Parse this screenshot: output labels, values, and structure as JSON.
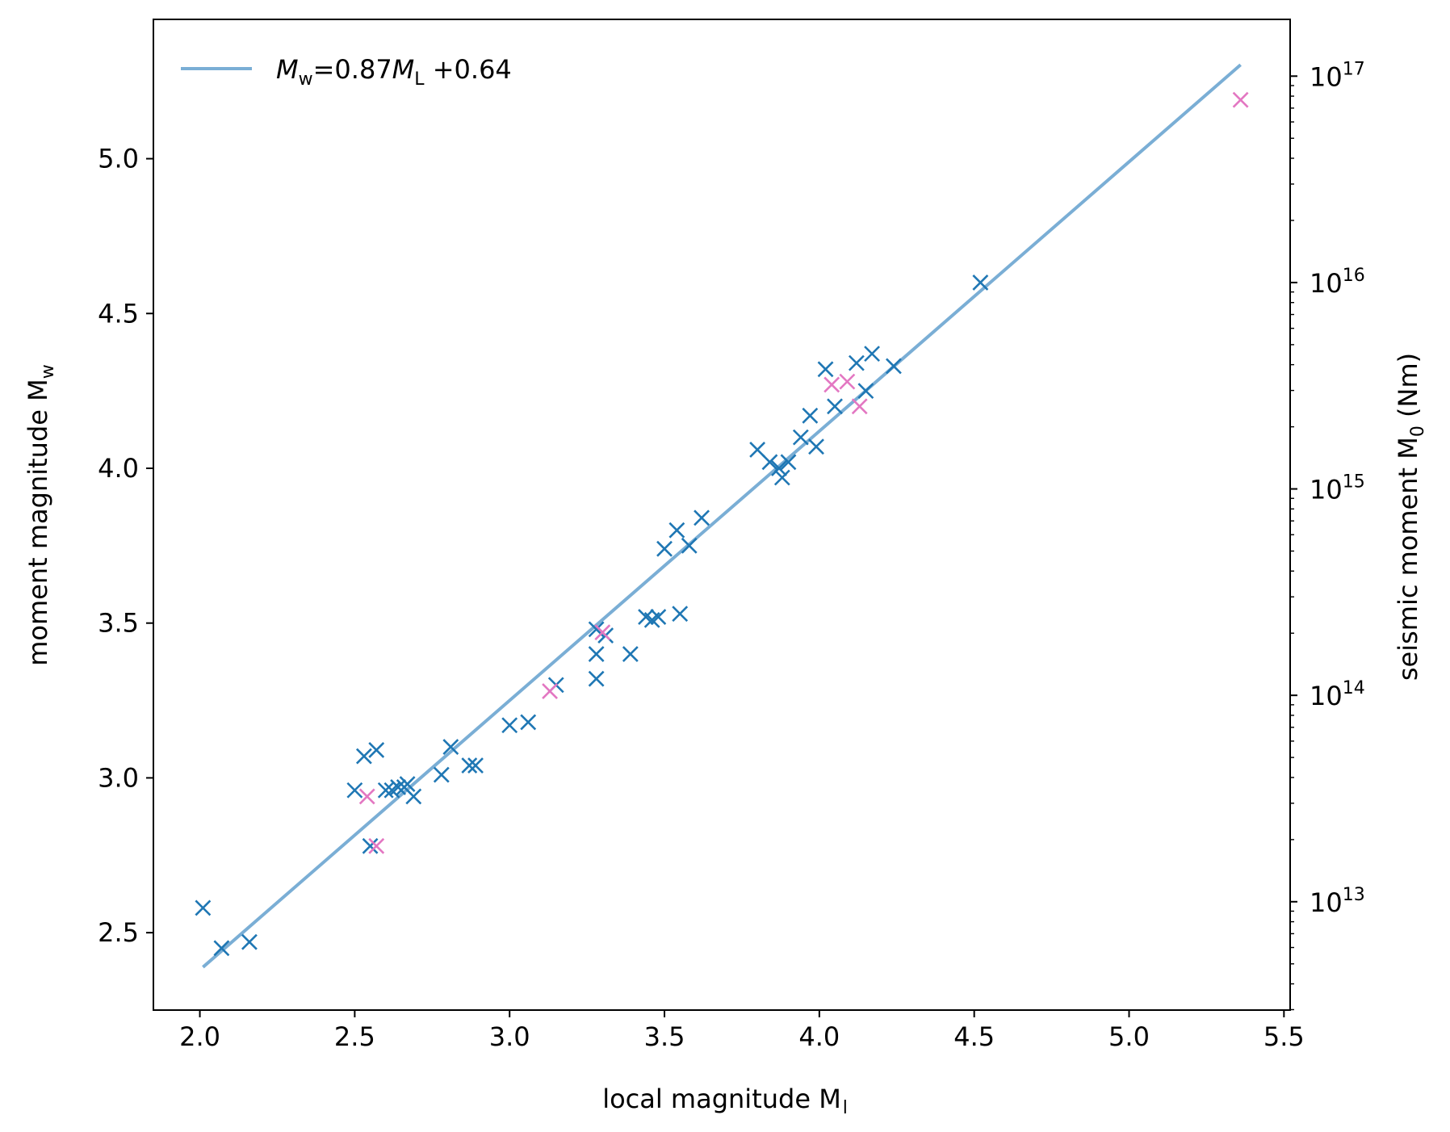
{
  "chart_data": {
    "type": "scatter",
    "title": "",
    "xlabel": "local magnitude  M",
    "xlabel_sub": "l",
    "ylabel": "moment magnitude M",
    "ylabel_sub": "w",
    "y2label": "seismic moment M",
    "y2label_sub": "0",
    "y2label_unit": " (Nm)",
    "xlim": [
      1.85,
      5.52
    ],
    "ylim": [
      2.25,
      5.45
    ],
    "y2lim_log10": [
      12.475,
      17.275
    ],
    "grid": false,
    "legend_position": "top-left",
    "x_ticks": [
      2.0,
      2.5,
      3.0,
      3.5,
      4.0,
      4.5,
      5.0,
      5.5
    ],
    "x_tick_labels": [
      "2.0",
      "2.5",
      "3.0",
      "3.5",
      "4.0",
      "4.5",
      "5.0",
      "5.5"
    ],
    "y_ticks": [
      2.5,
      3.0,
      3.5,
      4.0,
      4.5,
      5.0
    ],
    "y_tick_labels": [
      "2.5",
      "3.0",
      "3.5",
      "4.0",
      "4.5",
      "5.0"
    ],
    "y2_major_exponents": [
      13,
      14,
      15,
      16,
      17
    ],
    "y2_tick_base": "10",
    "y2_tick_exponent_labels": [
      "13",
      "14",
      "15",
      "16",
      "17"
    ],
    "series": [
      {
        "name": "",
        "type": "scatter",
        "marker": "x",
        "color": "#1f77b4",
        "points": [
          [
            2.01,
            2.58
          ],
          [
            2.07,
            2.45
          ],
          [
            2.16,
            2.47
          ],
          [
            2.5,
            2.96
          ],
          [
            2.53,
            3.07
          ],
          [
            2.57,
            3.09
          ],
          [
            2.55,
            2.78
          ],
          [
            2.6,
            2.96
          ],
          [
            2.62,
            2.96
          ],
          [
            2.64,
            2.97
          ],
          [
            2.66,
            2.97
          ],
          [
            2.67,
            2.98
          ],
          [
            2.69,
            2.94
          ],
          [
            2.78,
            3.01
          ],
          [
            2.81,
            3.1
          ],
          [
            2.87,
            3.04
          ],
          [
            2.89,
            3.04
          ],
          [
            3.0,
            3.17
          ],
          [
            3.06,
            3.18
          ],
          [
            3.15,
            3.3
          ],
          [
            3.28,
            3.48
          ],
          [
            3.28,
            3.4
          ],
          [
            3.28,
            3.32
          ],
          [
            3.31,
            3.46
          ],
          [
            3.39,
            3.4
          ],
          [
            3.44,
            3.52
          ],
          [
            3.46,
            3.51
          ],
          [
            3.48,
            3.52
          ],
          [
            3.55,
            3.53
          ],
          [
            3.5,
            3.74
          ],
          [
            3.54,
            3.8
          ],
          [
            3.58,
            3.75
          ],
          [
            3.62,
            3.84
          ],
          [
            3.8,
            4.06
          ],
          [
            3.84,
            4.02
          ],
          [
            3.87,
            4.0
          ],
          [
            3.88,
            3.97
          ],
          [
            3.9,
            4.02
          ],
          [
            3.94,
            4.1
          ],
          [
            3.97,
            4.17
          ],
          [
            3.99,
            4.07
          ],
          [
            4.02,
            4.32
          ],
          [
            4.05,
            4.2
          ],
          [
            4.12,
            4.34
          ],
          [
            4.15,
            4.25
          ],
          [
            4.17,
            4.37
          ],
          [
            4.24,
            4.33
          ],
          [
            4.52,
            4.6
          ]
        ]
      },
      {
        "name": "",
        "type": "scatter",
        "marker": "x",
        "color": "#e377c2",
        "points": [
          [
            2.54,
            2.94
          ],
          [
            2.57,
            2.78
          ],
          [
            3.13,
            3.28
          ],
          [
            3.3,
            3.47
          ],
          [
            4.04,
            4.27
          ],
          [
            4.09,
            4.28
          ],
          [
            4.13,
            4.2
          ],
          [
            5.36,
            5.19
          ]
        ]
      }
    ],
    "fit": {
      "slope": 0.87,
      "intercept": 0.64,
      "x_range": [
        2.01,
        5.36
      ],
      "color": "#7aaed5",
      "legend_label": {
        "lhs": "M",
        "lhs_sub": "w",
        "eq": "=0.87",
        "var": "M",
        "var_sub": "L",
        "rest": " +0.64"
      }
    }
  }
}
